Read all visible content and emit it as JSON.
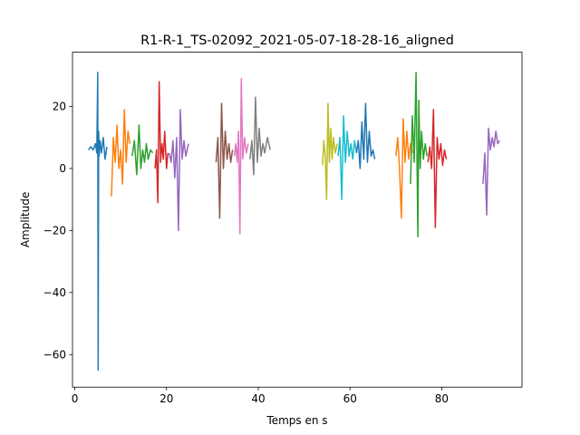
{
  "chart_data": {
    "type": "line",
    "title": "R1-R-1_TS-02092_2021-05-07-18-28-16_aligned",
    "xlabel": "Temps en s",
    "ylabel": "Amplitude",
    "xlim": [
      -0.5,
      97.5
    ],
    "ylim": [
      -70.5,
      37.5
    ],
    "xticks": [
      0,
      20,
      40,
      60,
      80
    ],
    "yticks": [
      -60,
      -40,
      -20,
      0,
      20
    ],
    "xtick_labels": [
      "0",
      "20",
      "40",
      "60",
      "80"
    ],
    "ytick_labels": [
      "−60",
      "−40",
      "−20",
      "0",
      "20"
    ],
    "grid": false,
    "legend": "none",
    "series": [
      {
        "color": "#1f77b4",
        "x": [
          3.0,
          3.5,
          4.0,
          4.5,
          4.8,
          5.0,
          5.1,
          5.2,
          5.3,
          5.5,
          5.8,
          6.2,
          6.6,
          7.0
        ],
        "y": [
          6,
          7,
          6,
          8,
          5,
          31,
          -65,
          12,
          4,
          9,
          5,
          10,
          3,
          7
        ]
      },
      {
        "color": "#ff7f0e",
        "x": [
          8.0,
          8.4,
          8.8,
          9.2,
          9.6,
          10.0,
          10.4,
          10.8,
          11.2,
          11.6,
          12.0
        ],
        "y": [
          -9,
          10,
          2,
          14,
          0,
          6,
          -5,
          19,
          2,
          12,
          8
        ]
      },
      {
        "color": "#2ca02c",
        "x": [
          12.5,
          13.0,
          13.5,
          14.0,
          14.4,
          14.8,
          15.2,
          15.6,
          16.0,
          16.5,
          17.0
        ],
        "y": [
          4,
          9,
          -2,
          14,
          0,
          6,
          2,
          8,
          3,
          6,
          5
        ]
      },
      {
        "color": "#d62728",
        "x": [
          17.5,
          17.8,
          18.1,
          18.4,
          18.7,
          19.0,
          19.3,
          19.6,
          20.0,
          20.3
        ],
        "y": [
          0,
          6,
          -11,
          28,
          2,
          8,
          3,
          12,
          0,
          5
        ]
      },
      {
        "color": "#9467bd",
        "x": [
          20.6,
          21.0,
          21.4,
          21.8,
          22.2,
          22.6,
          23.0,
          23.4,
          23.8,
          24.2,
          24.8
        ],
        "y": [
          5,
          2,
          9,
          -3,
          10,
          -20,
          19,
          3,
          9,
          4,
          8
        ]
      },
      {
        "color": "#8c564b",
        "x": [
          30.8,
          31.2,
          31.6,
          32.0,
          32.4,
          32.8,
          33.2,
          33.6,
          34.0,
          34.4
        ],
        "y": [
          2,
          10,
          -16,
          21,
          0,
          12,
          3,
          8,
          2,
          6
        ]
      },
      {
        "color": "#e377c2",
        "x": [
          34.8,
          35.1,
          35.4,
          35.7,
          36.0,
          36.3,
          36.6,
          37.0,
          37.4,
          37.8
        ],
        "y": [
          4,
          8,
          2,
          12,
          -21,
          29,
          3,
          10,
          5,
          8
        ]
      },
      {
        "color": "#7f7f7f",
        "x": [
          38.2,
          38.6,
          39.0,
          39.4,
          39.8,
          40.2,
          40.6,
          41.0,
          41.4,
          42.0,
          42.6
        ],
        "y": [
          3,
          9,
          -2,
          23,
          2,
          13,
          4,
          8,
          5,
          10,
          6
        ]
      },
      {
        "color": "#bcbd22",
        "x": [
          54.0,
          54.3,
          54.6,
          54.9,
          55.2,
          55.5,
          55.8,
          56.1,
          56.4,
          56.8,
          57.2
        ],
        "y": [
          1,
          9,
          4,
          -10,
          21,
          2,
          13,
          3,
          10,
          5,
          8
        ]
      },
      {
        "color": "#17becf",
        "x": [
          57.4,
          57.8,
          58.2,
          58.6,
          59.0,
          59.4,
          59.8,
          60.2,
          60.6,
          61.0,
          61.4
        ],
        "y": [
          4,
          10,
          -10,
          17,
          2,
          12,
          4,
          8,
          3,
          9,
          5
        ]
      },
      {
        "color": "#1f77b4",
        "x": [
          61.4,
          61.8,
          62.2,
          62.6,
          63.0,
          63.4,
          63.8,
          64.2,
          64.6,
          65.0,
          65.4
        ],
        "y": [
          5,
          9,
          0,
          15,
          3,
          21,
          2,
          12,
          4,
          6,
          3
        ]
      },
      {
        "color": "#ff7f0e",
        "x": [
          70.0,
          70.4,
          70.8,
          71.2,
          71.6,
          72.0,
          72.4,
          72.8,
          73.2,
          73.6
        ],
        "y": [
          4,
          10,
          0,
          -16,
          16,
          2,
          12,
          3,
          8,
          5
        ]
      },
      {
        "color": "#2ca02c",
        "x": [
          73.2,
          73.6,
          74.0,
          74.4,
          74.8,
          75.0,
          75.3,
          75.6,
          76.0,
          76.4,
          76.8
        ],
        "y": [
          -5,
          17,
          2,
          31,
          -22,
          22,
          0,
          12,
          3,
          8,
          4
        ]
      },
      {
        "color": "#d62728",
        "x": [
          77.0,
          77.4,
          77.8,
          78.2,
          78.6,
          79.0,
          79.4,
          79.8,
          80.2,
          80.6,
          81.0
        ],
        "y": [
          2,
          7,
          0,
          19,
          -19,
          10,
          3,
          8,
          1,
          6,
          3
        ]
      },
      {
        "color": "#9467bd",
        "x": [
          89.0,
          89.4,
          89.8,
          90.2,
          90.6,
          91.0,
          91.4,
          91.8,
          92.2,
          92.6
        ],
        "y": [
          -5,
          5,
          -15,
          13,
          6,
          10,
          7,
          12,
          8,
          9
        ]
      }
    ]
  }
}
